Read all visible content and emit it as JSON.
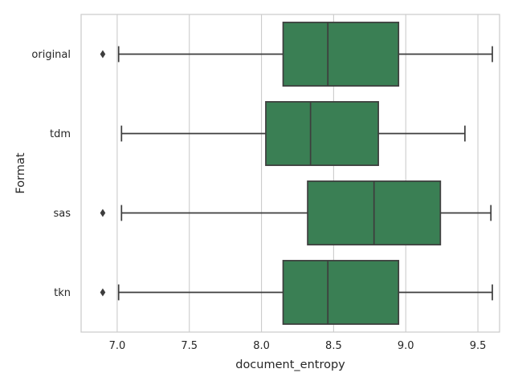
{
  "chart_data": {
    "type": "boxplot",
    "orientation": "horizontal",
    "xlabel": "document_entropy",
    "ylabel": "Format",
    "xlim": [
      6.75,
      9.65
    ],
    "xticks": [
      7.0,
      7.5,
      8.0,
      8.5,
      9.0,
      9.5
    ],
    "xtick_labels": [
      "7.0",
      "7.5",
      "8.0",
      "8.5",
      "9.0",
      "9.5"
    ],
    "grid": "vertical",
    "box_color": "#3a7f54",
    "categories": [
      "original",
      "tdm",
      "sas",
      "tkn"
    ],
    "boxes": [
      {
        "category": "original",
        "whisker_low": 7.01,
        "q1": 8.15,
        "median": 8.46,
        "q3": 8.95,
        "whisker_high": 9.6,
        "outliers": [
          6.9
        ]
      },
      {
        "category": "tdm",
        "whisker_low": 7.03,
        "q1": 8.03,
        "median": 8.34,
        "q3": 8.81,
        "whisker_high": 9.41,
        "outliers": []
      },
      {
        "category": "sas",
        "whisker_low": 7.03,
        "q1": 8.32,
        "median": 8.78,
        "q3": 9.24,
        "whisker_high": 9.59,
        "outliers": [
          6.9
        ]
      },
      {
        "category": "tkn",
        "whisker_low": 7.01,
        "q1": 8.15,
        "median": 8.46,
        "q3": 8.95,
        "whisker_high": 9.6,
        "outliers": [
          6.9
        ]
      }
    ]
  }
}
